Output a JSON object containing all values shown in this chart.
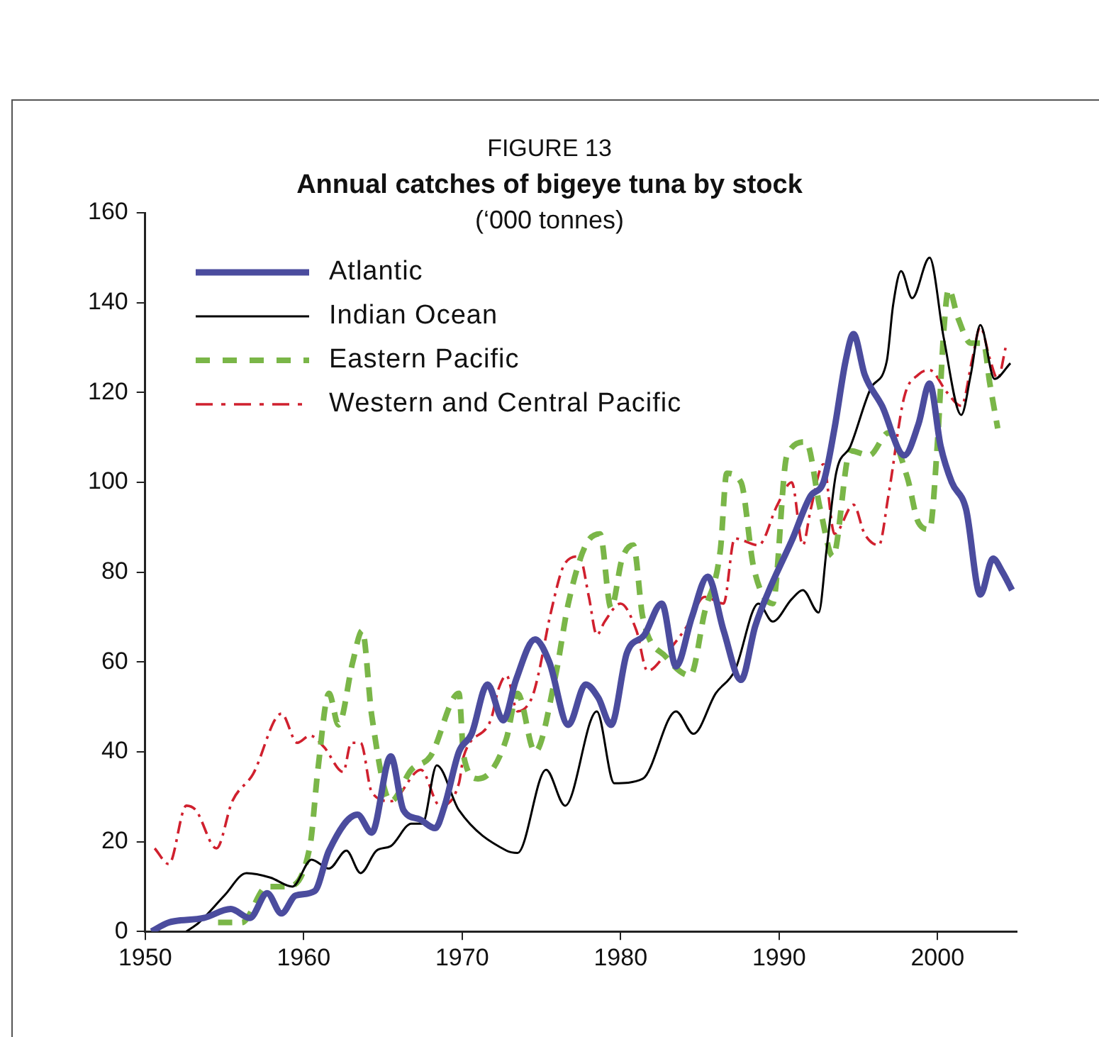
{
  "chart_data": {
    "type": "line",
    "title": "Annual catches of bigeye tuna by stock",
    "subtitle": "(‘000 tonnes)",
    "annotations": [
      "FIGURE 13"
    ],
    "xlim": [
      1950,
      2005
    ],
    "xticks": [
      1950,
      1960,
      1970,
      1980,
      1990,
      2000
    ],
    "ylim": [
      0,
      160
    ],
    "yticks": [
      0,
      20,
      40,
      60,
      80,
      100,
      120,
      140,
      160
    ],
    "grid": false,
    "legend": "top left",
    "marker": "none",
    "series": [
      {
        "name": "Atlantic",
        "color": "#4b4c9e",
        "line_style": "solid",
        "x": [
          1950.4,
          1951.5,
          1953.7,
          1955.4,
          1956.6,
          1957.7,
          1958.6,
          1959.5,
          1960.7,
          1961.6,
          1963.4,
          1964.3,
          1965.5,
          1966.3,
          1967.3,
          1968.3,
          1968.9,
          1969.8,
          1970.6,
          1971.6,
          1972.6,
          1973.4,
          1974.6,
          1975.5,
          1976.7,
          1977.8,
          1978.6,
          1979.4,
          1980.4,
          1981.5,
          1982.6,
          1983.5,
          1984.5,
          1985.5,
          1986.5,
          1987.6,
          1988.5,
          1989.5,
          1990.8,
          1992,
          1992.8,
          1993.5,
          1994.2,
          1994.7,
          1995.4,
          1996.5,
          1997.9,
          1998.8,
          1999.5,
          2000.2,
          2000.9,
          2001.8,
          2002.7,
          2003.5,
          2004.1,
          2004.7
        ],
        "values": [
          0,
          2,
          3,
          5,
          3,
          8.5,
          4,
          8,
          9,
          18,
          26,
          22,
          39,
          27,
          25,
          23,
          28,
          40,
          44,
          55,
          47,
          56,
          65,
          60,
          46,
          55,
          52,
          46,
          62,
          66,
          73,
          59,
          70,
          79,
          67,
          56,
          68,
          77,
          87,
          97,
          100,
          112,
          127,
          133,
          124,
          117,
          106,
          113,
          122,
          108,
          100,
          94,
          75,
          83,
          80,
          76
        ]
      },
      {
        "name": "Indian Ocean",
        "color": "#000000",
        "line_style": "solid",
        "x": [
          1952.6,
          1953.4,
          1955,
          1956.4,
          1957.9,
          1959.3,
          1960.5,
          1961.6,
          1962.7,
          1963.6,
          1964.6,
          1965.5,
          1966.8,
          1967.5,
          1968.4,
          1969.8,
          1972.8,
          1973.5,
          1975.3,
          1976.5,
          1978.5,
          1979.6,
          1981.4,
          1983.5,
          1984.6,
          1986,
          1987.2,
          1988.7,
          1989.6,
          1990.8,
          1991.5,
          1992.5,
          1993,
          1993.6,
          1994.5,
          1995.8,
          1996.8,
          1997.2,
          1997.7,
          1998.4,
          1999.5,
          2000.4,
          2001.5,
          2002.1,
          2002.7,
          2003.6,
          2004.6
        ],
        "values": [
          0,
          2,
          8,
          13,
          12,
          10,
          16,
          14,
          18,
          13,
          18,
          19,
          24,
          24,
          37,
          27,
          18,
          17.5,
          36,
          28,
          49,
          33,
          34,
          49,
          44,
          53,
          58,
          73,
          69,
          74,
          76,
          71,
          85,
          102,
          108,
          121,
          127,
          139.5,
          147,
          141,
          150,
          132,
          115,
          124,
          135,
          123,
          126.5
        ]
      },
      {
        "name": "Eastern Pacific",
        "color": "#7ab648",
        "line_style": "dashed",
        "x": [
          1954.6,
          1956.1,
          1957.7,
          1958.9,
          1960.4,
          1960.9,
          1961.6,
          1962.2,
          1963.1,
          1963.7,
          1964.3,
          1965.5,
          1966.8,
          1968,
          1969.8,
          1970.1,
          1971,
          1971.9,
          1972.8,
          1973.5,
          1974.6,
          1975.9,
          1976.7,
          1977.8,
          1978.7,
          1979.4,
          1980.1,
          1980.8,
          1981.4,
          1982.9,
          1984.4,
          1985.3,
          1986.3,
          1986.7,
          1987.6,
          1988.4,
          1989.6,
          1990.5,
          1991.7,
          1992.6,
          1993.4,
          1994.5,
          1995.7,
          1996.9,
          1998.1,
          1998.8,
          1999.5,
          2000,
          2000.4,
          2000.7,
          2001.3,
          2002.1,
          2002.9,
          2003.3,
          2003.8
        ],
        "values": [
          2,
          2,
          10,
          10,
          19,
          36,
          53,
          46,
          60,
          67,
          48,
          29,
          36,
          39,
          53,
          39,
          34,
          36,
          43,
          53,
          40,
          57,
          73,
          86,
          88.5,
          72,
          83,
          86,
          70,
          61,
          57,
          71,
          85,
          102,
          100,
          81,
          73,
          106,
          109,
          94,
          83.5,
          107,
          106,
          111,
          101,
          91,
          89.5,
          109,
          134,
          143,
          136.5,
          131,
          131,
          122,
          112
        ]
      },
      {
        "name": "Western and Central Pacific",
        "color": "#d0202e",
        "line_style": "dashdot",
        "x": [
          1950.6,
          1951.5,
          1952.6,
          1953.2,
          1954.5,
          1955.5,
          1956.8,
          1958.6,
          1959.6,
          1960.4,
          1961.3,
          1962.5,
          1963,
          1963.6,
          1964.3,
          1965.5,
          1967.4,
          1968.6,
          1969.8,
          1970.1,
          1971.8,
          1972.3,
          1972.8,
          1973.5,
          1974.4,
          1974.8,
          1975.6,
          1976.5,
          1977.4,
          1978,
          1978.5,
          1979,
          1980,
          1981,
          1981.7,
          1982.9,
          1984.2,
          1985.3,
          1986.5,
          1987.2,
          1988.7,
          1989.9,
          1990.8,
          1991.5,
          1992,
          1992.8,
          1993.5,
          1994.7,
          1995.4,
          1996.3,
          1996.9,
          1997.9,
          1998.8,
          1999.5,
          2000.6,
          2001.5,
          2002.2,
          2002.7,
          2003.3,
          2003.8,
          2004.3
        ],
        "values": [
          18.5,
          15,
          28,
          27,
          18.5,
          29,
          35,
          48.5,
          42,
          43.6,
          41,
          35.5,
          42,
          42,
          31,
          29,
          36,
          28,
          33,
          39,
          47,
          54,
          57,
          49,
          52,
          57,
          71,
          82,
          83.5,
          74.5,
          66,
          69,
          73,
          67,
          58,
          62,
          68,
          74.5,
          73,
          87.5,
          86,
          95,
          100,
          86,
          94,
          104,
          88.5,
          95,
          88.5,
          86,
          97,
          119,
          124,
          125,
          120,
          117,
          127.5,
          134.6,
          127.5,
          123,
          130
        ]
      }
    ]
  }
}
